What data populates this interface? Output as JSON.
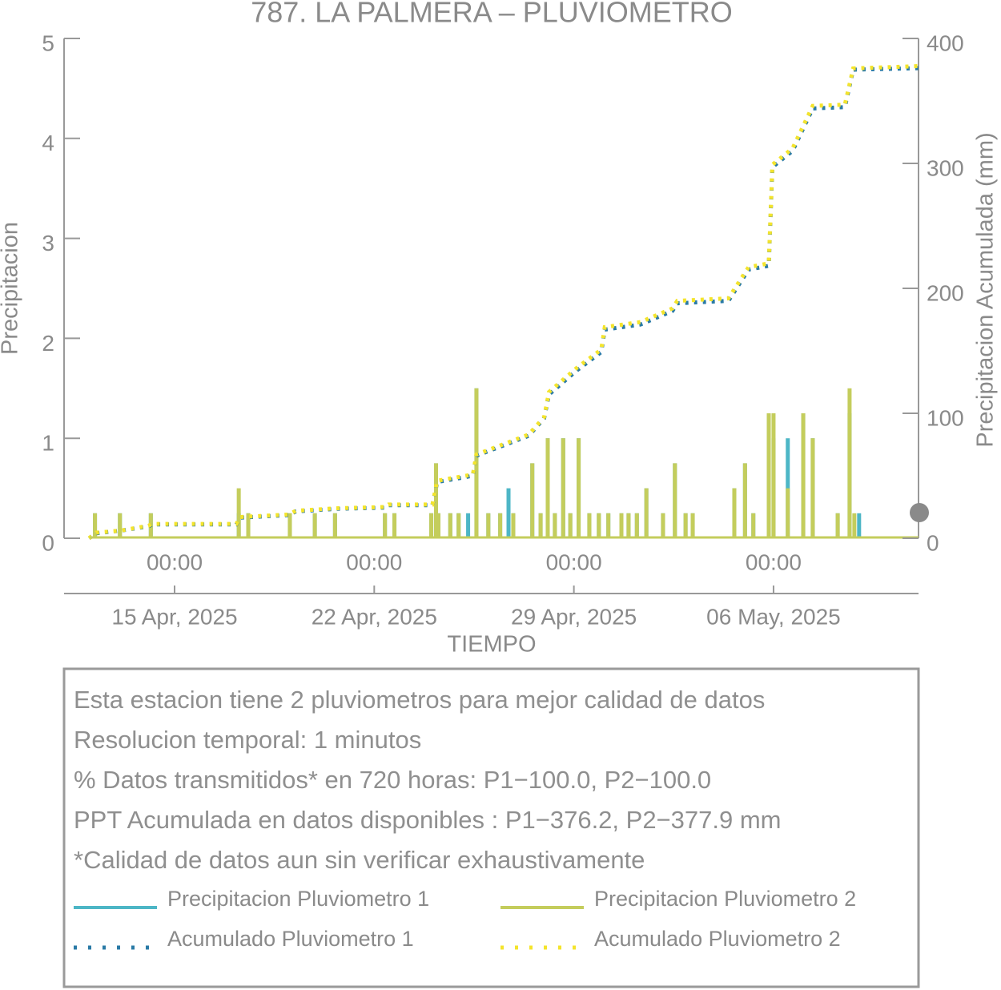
{
  "chart_data": {
    "type": "combo",
    "title": "787. LA PALMERA – PLUVIOMETRO",
    "x_label": "TIEMPO",
    "y_label": "Precipitacion",
    "y2_label": "Precipitacion Acumulada (mm)",
    "xlim": [
      "2025-04-11 03:00",
      "2025-05-11 02:00"
    ],
    "xticks": [
      {
        "value": "2025-04-15 00:00",
        "label": "15 Apr, 2025",
        "hour_label": "00:00"
      },
      {
        "value": "2025-04-22 00:00",
        "label": "22 Apr, 2025",
        "hour_label": "00:00"
      },
      {
        "value": "2025-04-29 00:00",
        "label": "29 Apr, 2025",
        "hour_label": "00:00"
      },
      {
        "value": "2025-05-06 00:00",
        "label": "06 May, 2025",
        "hour_label": "00:00"
      }
    ],
    "ylim": [
      0,
      5
    ],
    "yticks": [
      0,
      1,
      2,
      3,
      4,
      5
    ],
    "y2lim": [
      0,
      400
    ],
    "y2ticks": [
      0,
      100,
      200,
      300,
      400
    ],
    "series": [
      {
        "name": "Precipitacion Pluviometro 1",
        "color": "#4db6c6",
        "type": "bar",
        "x": [
          "2025-04-12 05:00",
          "2025-04-13 02:00",
          "2025-04-14 04:00",
          "2025-04-17 06:00",
          "2025-04-17 14:00",
          "2025-04-19 01:00",
          "2025-04-19 22:00",
          "2025-04-20 15:00",
          "2025-04-22 09:00",
          "2025-04-22 17:00",
          "2025-04-24 00:00",
          "2025-04-24 04:00",
          "2025-04-24 06:00",
          "2025-04-24 16:00",
          "2025-04-24 23:00",
          "2025-04-25 07:00",
          "2025-04-25 14:00",
          "2025-04-26 00:00",
          "2025-04-26 10:00",
          "2025-04-26 17:00",
          "2025-04-26 21:00",
          "2025-04-27 13:00",
          "2025-04-27 20:00",
          "2025-04-28 02:00",
          "2025-04-28 08:00",
          "2025-04-28 15:00",
          "2025-04-28 21:00",
          "2025-04-29 04:00",
          "2025-04-29 13:00",
          "2025-04-29 21:00",
          "2025-04-30 05:00",
          "2025-04-30 16:00",
          "2025-04-30 22:00",
          "2025-05-01 05:00",
          "2025-05-01 13:00",
          "2025-05-02 03:00",
          "2025-05-02 13:00",
          "2025-05-02 22:00",
          "2025-05-03 04:00",
          "2025-05-04 15:00",
          "2025-05-05 00:00",
          "2025-05-05 07:00",
          "2025-05-05 20:00",
          "2025-05-06 00:00",
          "2025-05-06 12:00",
          "2025-05-07 01:00",
          "2025-05-07 09:00",
          "2025-05-08 06:00",
          "2025-05-08 16:00",
          "2025-05-09 00:00"
        ],
        "values": [
          0.25,
          0.25,
          0.25,
          0.25,
          0.25,
          0.25,
          0.25,
          0.25,
          0.25,
          0.25,
          0.25,
          0.75,
          0.25,
          0.25,
          0.25,
          0.25,
          1.5,
          0.25,
          0.25,
          0.5,
          0.25,
          0.75,
          0.25,
          1.0,
          0.25,
          1.0,
          0.25,
          1.0,
          0.25,
          0.25,
          0.25,
          0.25,
          0.25,
          0.25,
          0.5,
          0.25,
          0.75,
          0.25,
          0.25,
          0.5,
          0.75,
          0.25,
          1.25,
          1.0,
          1.0,
          1.25,
          1.0,
          0.25,
          1.25,
          0.25
        ]
      },
      {
        "name": "Precipitacion Pluviometro 2",
        "color": "#c4cd5c",
        "type": "bar",
        "x": [
          "2025-04-12 05:00",
          "2025-04-13 02:00",
          "2025-04-14 04:00",
          "2025-04-17 06:00",
          "2025-04-17 14:00",
          "2025-04-19 01:00",
          "2025-04-19 22:00",
          "2025-04-20 15:00",
          "2025-04-22 09:00",
          "2025-04-22 17:00",
          "2025-04-24 00:00",
          "2025-04-24 04:00",
          "2025-04-24 06:00",
          "2025-04-24 16:00",
          "2025-04-24 23:00",
          "2025-04-25 14:00",
          "2025-04-26 00:00",
          "2025-04-26 10:00",
          "2025-04-26 21:00",
          "2025-04-27 13:00",
          "2025-04-27 20:00",
          "2025-04-28 02:00",
          "2025-04-28 08:00",
          "2025-04-28 15:00",
          "2025-04-28 21:00",
          "2025-04-29 04:00",
          "2025-04-29 13:00",
          "2025-04-29 21:00",
          "2025-04-30 05:00",
          "2025-04-30 16:00",
          "2025-04-30 22:00",
          "2025-05-01 05:00",
          "2025-05-01 13:00",
          "2025-05-02 03:00",
          "2025-05-02 13:00",
          "2025-05-02 22:00",
          "2025-05-03 04:00",
          "2025-05-04 15:00",
          "2025-05-05 00:00",
          "2025-05-05 07:00",
          "2025-05-05 20:00",
          "2025-05-06 00:00",
          "2025-05-06 12:00",
          "2025-05-07 01:00",
          "2025-05-07 09:00",
          "2025-05-08 06:00",
          "2025-05-08 16:00",
          "2025-05-08 20:00"
        ],
        "values": [
          0.25,
          0.25,
          0.25,
          0.5,
          0.25,
          0.25,
          0.25,
          0.25,
          0.25,
          0.25,
          0.25,
          0.75,
          0.25,
          0.25,
          0.25,
          1.5,
          0.25,
          0.25,
          0.25,
          0.75,
          0.25,
          1.0,
          0.25,
          1.0,
          0.25,
          1.0,
          0.25,
          0.25,
          0.25,
          0.25,
          0.25,
          0.25,
          0.5,
          0.25,
          0.75,
          0.25,
          0.25,
          0.5,
          0.75,
          0.25,
          1.25,
          1.25,
          0.5,
          1.25,
          1.0,
          0.25,
          1.5,
          0.25
        ]
      },
      {
        "name": "Acumulado Pluviometro 1",
        "color": "#2a7aa6",
        "type": "line",
        "axis": "y2",
        "x": [
          "2025-04-12 00:00",
          "2025-04-12 06:00",
          "2025-04-13 02:00",
          "2025-04-14 02:00",
          "2025-04-14 05:00",
          "2025-04-17 04:00",
          "2025-04-17 07:00",
          "2025-04-19 00:00",
          "2025-04-19 06:00",
          "2025-04-20 16:00",
          "2025-04-22 09:00",
          "2025-04-22 12:00",
          "2025-04-24 01:00",
          "2025-04-24 05:00",
          "2025-04-25 11:00",
          "2025-04-25 14:00",
          "2025-04-27 10:00",
          "2025-04-27 23:00",
          "2025-04-28 03:00",
          "2025-04-29 02:00",
          "2025-04-29 23:00",
          "2025-04-30 02:00",
          "2025-05-01 08:00",
          "2025-05-02 11:00",
          "2025-05-02 15:00",
          "2025-05-04 10:00",
          "2025-05-05 03:00",
          "2025-05-05 20:00",
          "2025-05-05 23:00",
          "2025-05-06 16:00",
          "2025-05-07 09:00",
          "2025-05-08 12:00",
          "2025-05-08 19:00",
          "2025-05-11 02:00"
        ],
        "values": [
          0,
          4,
          6,
          9.5,
          11,
          11,
          16.5,
          18.5,
          21.5,
          23.5,
          24.5,
          26.5,
          26.5,
          45,
          50,
          66,
          82,
          96,
          115,
          134,
          149,
          167,
          171,
          182,
          188,
          190,
          215,
          218,
          297,
          310,
          344,
          345,
          375,
          376.2
        ]
      },
      {
        "name": "Acumulado Pluviometro 2",
        "color": "#f4e42c",
        "type": "line",
        "axis": "y2",
        "x": [
          "2025-04-12 00:00",
          "2025-04-12 06:00",
          "2025-04-13 02:00",
          "2025-04-14 02:00",
          "2025-04-14 05:00",
          "2025-04-17 04:00",
          "2025-04-17 07:00",
          "2025-04-19 00:00",
          "2025-04-19 06:00",
          "2025-04-20 16:00",
          "2025-04-22 09:00",
          "2025-04-22 12:00",
          "2025-04-24 01:00",
          "2025-04-24 05:00",
          "2025-04-25 11:00",
          "2025-04-25 14:00",
          "2025-04-27 10:00",
          "2025-04-27 23:00",
          "2025-04-28 03:00",
          "2025-04-29 02:00",
          "2025-04-29 23:00",
          "2025-04-30 02:00",
          "2025-05-01 08:00",
          "2025-05-02 11:00",
          "2025-05-02 15:00",
          "2025-05-04 10:00",
          "2025-05-05 03:00",
          "2025-05-05 20:00",
          "2025-05-05 23:00",
          "2025-05-06 16:00",
          "2025-05-07 09:00",
          "2025-05-08 12:00",
          "2025-05-08 19:00",
          "2025-05-11 02:00"
        ],
        "values": [
          0,
          4.5,
          6,
          10,
          11.5,
          11.5,
          17,
          19,
          22,
          24,
          25,
          27,
          27,
          46,
          51,
          67,
          83,
          97,
          117,
          136,
          151,
          169,
          173,
          184,
          190,
          192,
          217,
          220,
          299,
          312,
          346,
          347,
          376,
          377.9
        ]
      }
    ]
  },
  "info_box": {
    "lines": [
      "Esta estacion tiene 2 pluviometros para mejor calidad de datos",
      "Resolucion temporal: 1 minutos",
      "% Datos transmitidos* en 720 horas: P1−100.0, P2−100.0",
      "PPT Acumulada en datos disponibles : P1−376.2, P2−377.9 mm",
      "*Calidad de datos aun sin verificar exhaustivamente"
    ]
  }
}
